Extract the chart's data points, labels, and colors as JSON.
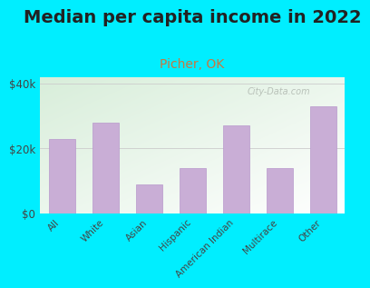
{
  "title": "Median per capita income in 2022",
  "subtitle": "Picher, OK",
  "categories": [
    "All",
    "White",
    "Asian",
    "Hispanic",
    "American Indian",
    "Multirace",
    "Other"
  ],
  "values": [
    23000,
    28000,
    9000,
    14000,
    27000,
    14000,
    33000
  ],
  "bar_color": "#c9aed6",
  "bar_edge_color": "#b898cc",
  "background_outer": "#00eeff",
  "title_fontsize": 14,
  "subtitle_fontsize": 10,
  "subtitle_color": "#c87840",
  "title_color": "#222222",
  "ylabel_ticks": [
    "$0",
    "$20k",
    "$40k"
  ],
  "ytick_values": [
    0,
    20000,
    40000
  ],
  "ylim": [
    0,
    42000
  ],
  "watermark": "City-Data.com",
  "watermark_color": "#b0b8b0"
}
